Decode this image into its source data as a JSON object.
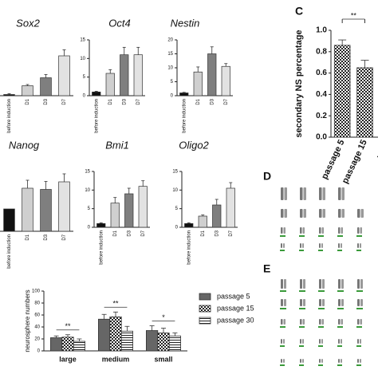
{
  "chart_data": [
    {
      "type": "bar",
      "title": "Sox2",
      "categories": [
        "before induction",
        "D1",
        "D3",
        "D7"
      ],
      "values": [
        0.3,
        2.5,
        4.5,
        10
      ],
      "errors": [
        0.2,
        0.3,
        0.8,
        1.5
      ],
      "colors": [
        "#111111",
        "#cfcfcf",
        "#7f7f7f",
        "#e2e2e2"
      ],
      "ylim": [
        0,
        15
      ]
    },
    {
      "type": "bar",
      "title": "Oct4",
      "categories": [
        "before induction",
        "D1",
        "D3",
        "D7"
      ],
      "values": [
        1,
        6,
        11,
        11
      ],
      "errors": [
        0.2,
        1,
        2,
        2
      ],
      "colors": [
        "#111111",
        "#cfcfcf",
        "#7f7f7f",
        "#e2e2e2"
      ],
      "ylim": [
        0,
        15
      ],
      "yticks": [
        0,
        5,
        10,
        15
      ]
    },
    {
      "type": "bar",
      "title": "Nestin",
      "categories": [
        "before induction",
        "D1",
        "D3",
        "D7"
      ],
      "values": [
        1,
        8.5,
        15,
        10.5
      ],
      "errors": [
        0.2,
        1.8,
        2.5,
        1
      ],
      "colors": [
        "#111111",
        "#cfcfcf",
        "#7f7f7f",
        "#e2e2e2"
      ],
      "ylim": [
        0,
        20
      ],
      "yticks": [
        0,
        5,
        10,
        15,
        20
      ]
    },
    {
      "type": "bar",
      "title": "Nanog",
      "categories": [
        "before induction",
        "D1",
        "D3",
        "D7"
      ],
      "values": [
        5.6,
        10.8,
        10.5,
        12.4
      ],
      "errors": [
        0,
        2,
        2,
        2
      ],
      "colors": [
        "#111111",
        "#cfcfcf",
        "#7f7f7f",
        "#e2e2e2"
      ],
      "ylim": [
        0,
        15
      ]
    },
    {
      "type": "bar",
      "title": "Bmi1",
      "categories": [
        "before induction",
        "D1",
        "D3",
        "D7"
      ],
      "values": [
        1,
        6.5,
        9,
        11
      ],
      "errors": [
        0.2,
        1.5,
        1.5,
        1.5
      ],
      "colors": [
        "#111111",
        "#cfcfcf",
        "#7f7f7f",
        "#e2e2e2"
      ],
      "ylim": [
        0,
        15
      ],
      "yticks": [
        0,
        5,
        10,
        15
      ]
    },
    {
      "type": "bar",
      "title": "Oligo2",
      "categories": [
        "before induction",
        "D1",
        "D3",
        "D7"
      ],
      "values": [
        1,
        3,
        6,
        10.5
      ],
      "errors": [
        0.2,
        0.3,
        1.5,
        1.5
      ],
      "colors": [
        "#111111",
        "#cfcfcf",
        "#7f7f7f",
        "#e2e2e2"
      ],
      "ylim": [
        0,
        15
      ],
      "yticks": [
        0,
        5,
        10,
        15
      ]
    },
    {
      "type": "grouped-bar",
      "y_label": "neurosphere numbers",
      "categories": [
        "large",
        "medium",
        "small"
      ],
      "series": [
        {
          "name": "passage 5",
          "color": "#666666",
          "pattern": "solid",
          "values": [
            22,
            53,
            34
          ],
          "errors": [
            3,
            8,
            8
          ]
        },
        {
          "name": "passage 15",
          "color": "#666666",
          "pattern": "checker",
          "values": [
            23,
            57,
            30
          ],
          "errors": [
            4,
            8,
            8
          ]
        },
        {
          "name": "passage 30",
          "color": "#666666",
          "pattern": "stripes",
          "values": [
            16,
            33,
            25
          ],
          "errors": [
            4,
            8,
            5
          ]
        }
      ],
      "annotations": [
        "**",
        "**",
        "*"
      ],
      "ylim": [
        0,
        100
      ],
      "yticks": [
        0,
        20,
        40,
        60,
        80,
        100
      ]
    },
    {
      "type": "bar",
      "panel": "C",
      "y_label": "secondary NS percentage",
      "categories": [
        "passage 5",
        "passage 15",
        "pass"
      ],
      "values": [
        0.86,
        0.65,
        null
      ],
      "errors": [
        0.05,
        0.07,
        null
      ],
      "patterns": [
        "checker",
        "checker",
        "checker"
      ],
      "colors": [
        "#333333",
        "#333333",
        "#333333"
      ],
      "annotations": [
        "**"
      ],
      "ylim": [
        0,
        1
      ],
      "yticks": [
        {
          "value": 0,
          "label": "0.0"
        },
        {
          "value": 0.2,
          "label": "0.2"
        },
        {
          "value": 0.4,
          "label": "0.4"
        },
        {
          "value": 0.6,
          "label": "0.6"
        },
        {
          "value": 0.8,
          "label": "0.8"
        },
        {
          "value": 1,
          "label": "1.0"
        }
      ]
    }
  ],
  "panels": [
    "D",
    "E"
  ]
}
